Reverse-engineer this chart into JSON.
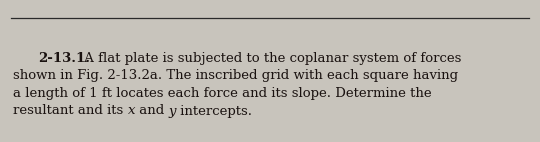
{
  "background_color": "#c8c4bc",
  "line_color": "#2a2a2a",
  "problem_number": "2-13.1.",
  "line1_rest": " A flat plate is subjected to the coplanar system of forces",
  "line2": "shown in Fig. 2-13.2a. The inscribed grid with each square having",
  "line3": "a length of 1 ft locates each force and its slope. Determine the",
  "line4_pre": "resultant and its ",
  "line4_x": "x",
  "line4_mid": " and ",
  "line4_y": "y",
  "line4_end": " intercepts.",
  "font_size": 9.5,
  "text_color": "#1a1210",
  "fig_width": 5.4,
  "fig_height": 1.42,
  "dpi": 100
}
